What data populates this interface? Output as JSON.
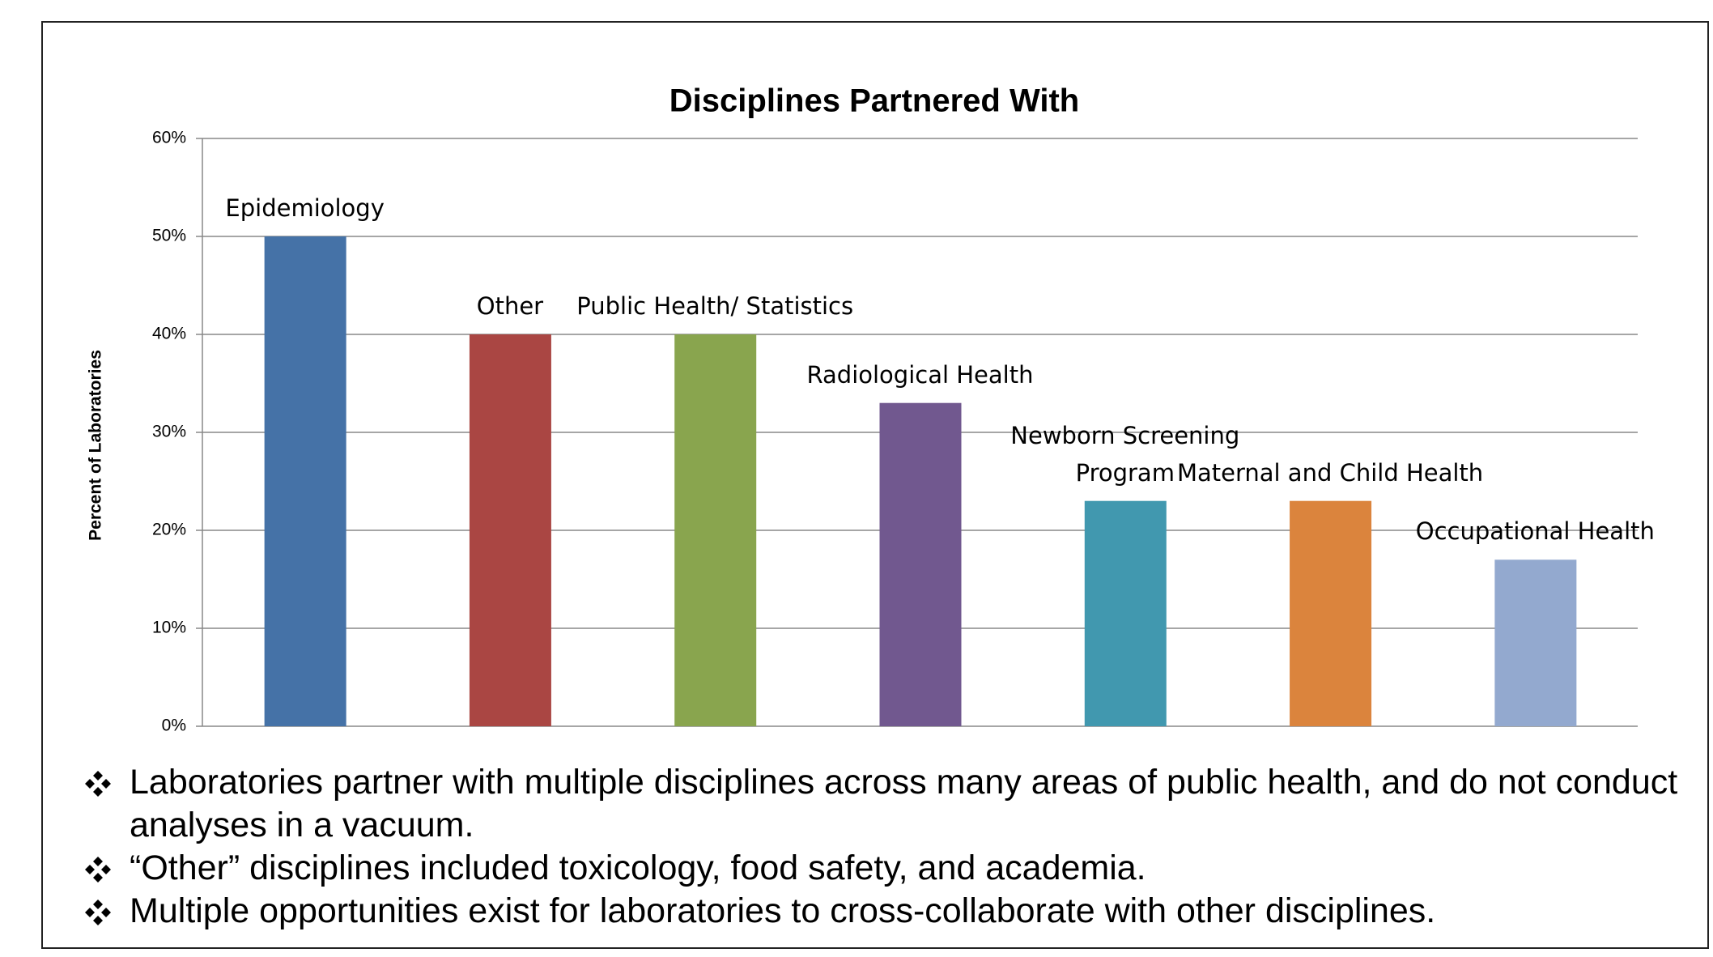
{
  "chart_data": {
    "type": "bar",
    "title": "Disciplines Partnered With",
    "y_label": "Percent of Laboratories",
    "categories": [
      "Epidemiology",
      "Other",
      "Public Health/ Statistics",
      "Radiological Health",
      "Newborn Screening Program",
      "Maternal and Child Health",
      "Occupational Health"
    ],
    "values": [
      50,
      40,
      40,
      33,
      23,
      23,
      17
    ],
    "colors": [
      "#4572a7",
      "#aa4643",
      "#89a54e",
      "#71588f",
      "#4198af",
      "#db843d",
      "#93a9cf"
    ],
    "ylim": [
      0,
      60
    ],
    "yticks": [
      {
        "value": 0,
        "label": "0%"
      },
      {
        "value": 10,
        "label": "10%"
      },
      {
        "value": 20,
        "label": "20%"
      },
      {
        "value": 30,
        "label": "30%"
      },
      {
        "value": 40,
        "label": "40%"
      },
      {
        "value": 50,
        "label": "50%"
      },
      {
        "value": 60,
        "label": "60%"
      }
    ],
    "grid": true
  },
  "bullets": [
    "Laboratories partner with multiple disciplines across many areas of public health, and do not conduct analyses in a vacuum.",
    "“Other” disciplines included toxicology, food safety, and academia.",
    "Multiple opportunities exist for laboratories to cross-collaborate with other disciplines."
  ]
}
